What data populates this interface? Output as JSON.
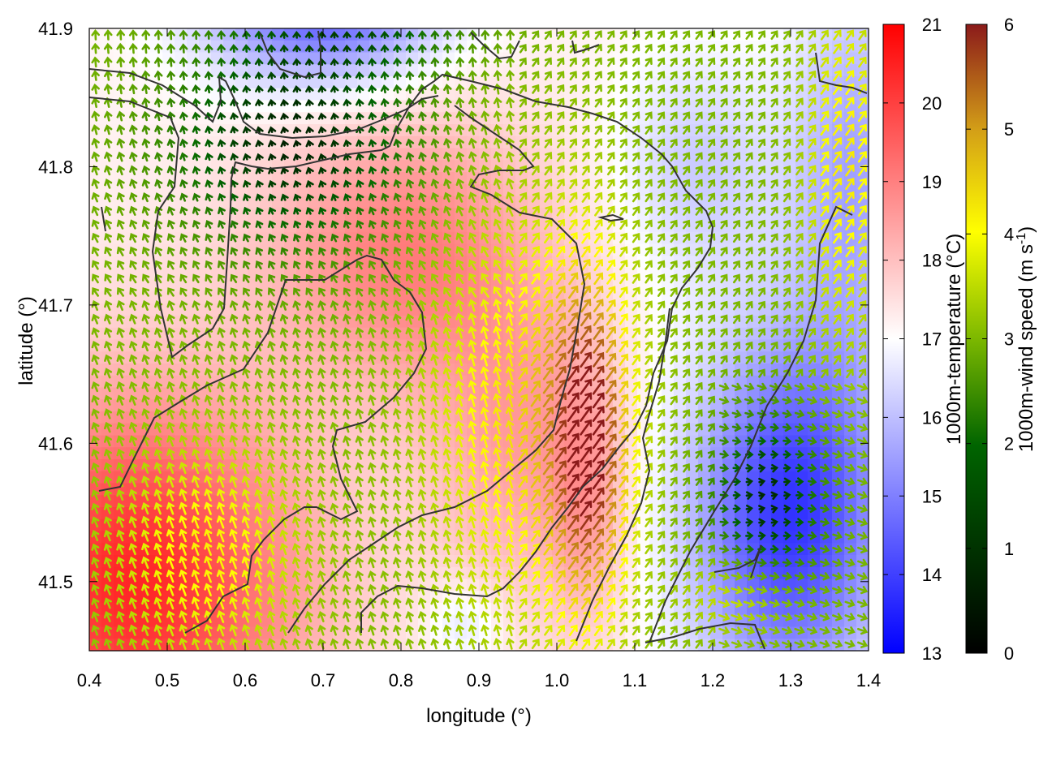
{
  "chart_data": {
    "type": "heatmap",
    "title": "",
    "xlabel": "longitude (°)",
    "ylabel": "latitude (°)",
    "xlim": [
      0.4,
      1.4
    ],
    "ylim": [
      41.45,
      41.9
    ],
    "x_ticks": [
      "0.4",
      "0.5",
      "0.6",
      "0.7",
      "0.8",
      "0.9",
      "1.0",
      "1.1",
      "1.2",
      "1.3",
      "1.4"
    ],
    "y_ticks": [
      "41.5",
      "41.6",
      "41.7",
      "41.8",
      "41.9"
    ],
    "x_tick_values": [
      0.4,
      0.5,
      0.6,
      0.7,
      0.8,
      0.9,
      1.0,
      1.1,
      1.2,
      1.3,
      1.4
    ],
    "y_tick_values": [
      41.5,
      41.6,
      41.7,
      41.8,
      41.9
    ],
    "grid": false,
    "fill_variable": {
      "label": "1000m-temperature (°C)",
      "range": [
        13,
        21
      ],
      "ticks": [
        "13",
        "14",
        "15",
        "16",
        "17",
        "18",
        "19",
        "20",
        "21"
      ],
      "colormap": [
        "#0000ff",
        "#ffffff",
        "#ff0000"
      ]
    },
    "vector_variable": {
      "label_main": "1000m-wind speed (m s",
      "label_sup": "-1",
      "label_end": ")",
      "range": [
        0,
        6
      ],
      "ticks": [
        "0",
        "1",
        "2",
        "3",
        "4",
        "5",
        "6"
      ],
      "colormap": [
        "#000000",
        "#006400",
        "#7cb800",
        "#ffff00",
        "#d4a017",
        "#8b1a1a"
      ]
    },
    "colors": {
      "contour": "#333333",
      "frame": "#000000"
    }
  }
}
